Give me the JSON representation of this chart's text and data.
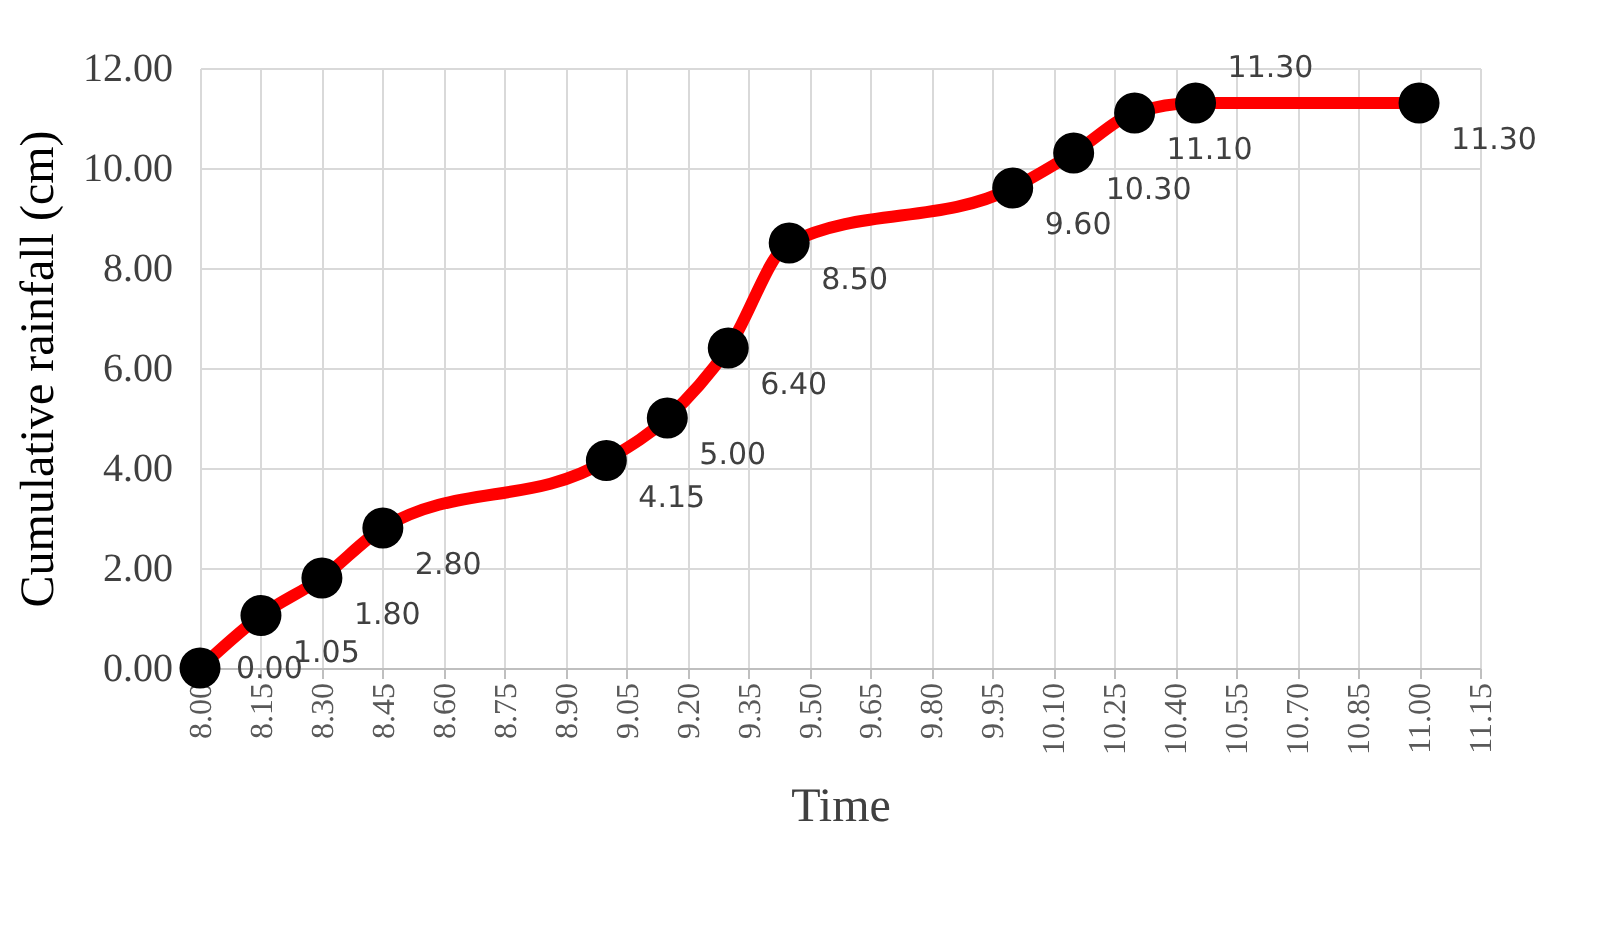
{
  "chart_data": {
    "type": "line",
    "xlabel": "Time",
    "ylabel": "Cumulative rainfall (cm)",
    "x": [
      8.0,
      8.15,
      8.3,
      8.45,
      9.0,
      9.15,
      9.3,
      9.45,
      10.0,
      10.15,
      10.3,
      10.45,
      11.0
    ],
    "series": [
      {
        "color": "#ff0000",
        "values": [
          0,
          1.05,
          1.8,
          2.8,
          4.15,
          5.0,
          6.4,
          8.5,
          9.6,
          10.3,
          11.1,
          11.3,
          11.3
        ],
        "value_labels": [
          "0.00",
          "1.05",
          "1.80",
          "2.80",
          "4.15",
          "5.00",
          "6.40",
          "8.50",
          "9.60",
          "10.30",
          "11.10",
          "11.30",
          "11.30"
        ]
      }
    ],
    "marker": "circle",
    "line_style": "solid",
    "xlim": [
      8.0,
      11.15
    ],
    "ylim": [
      0,
      12
    ],
    "xticks": [
      {
        "value": 8.0,
        "label": "8.00"
      },
      {
        "value": 8.15,
        "label": "8.15"
      },
      {
        "value": 8.3,
        "label": "8.30"
      },
      {
        "value": 8.45,
        "label": "8.45"
      },
      {
        "value": 8.6,
        "label": "8.60"
      },
      {
        "value": 8.75,
        "label": "8.75"
      },
      {
        "value": 8.9,
        "label": "8.90"
      },
      {
        "value": 9.05,
        "label": "9.05"
      },
      {
        "value": 9.2,
        "label": "9.20"
      },
      {
        "value": 9.35,
        "label": "9.35"
      },
      {
        "value": 9.5,
        "label": "9.50"
      },
      {
        "value": 9.65,
        "label": "9.65"
      },
      {
        "value": 9.8,
        "label": "9.80"
      },
      {
        "value": 9.95,
        "label": "9.95"
      },
      {
        "value": 10.1,
        "label": "10.10"
      },
      {
        "value": 10.25,
        "label": "10.25"
      },
      {
        "value": 10.4,
        "label": "10.40"
      },
      {
        "value": 10.55,
        "label": "10.55"
      },
      {
        "value": 10.7,
        "label": "10.70"
      },
      {
        "value": 10.85,
        "label": "10.85"
      },
      {
        "value": 11.0,
        "label": "11.00"
      },
      {
        "value": 11.15,
        "label": "11.15"
      }
    ],
    "yticks": [
      {
        "value": 0,
        "label": "0.00"
      },
      {
        "value": 2,
        "label": "2.00"
      },
      {
        "value": 4,
        "label": "4.00"
      },
      {
        "value": 6,
        "label": "6.00"
      },
      {
        "value": 8,
        "label": "8.00"
      },
      {
        "value": 10,
        "label": "10.00"
      },
      {
        "value": 12,
        "label": "12.00"
      }
    ],
    "grid": true
  }
}
